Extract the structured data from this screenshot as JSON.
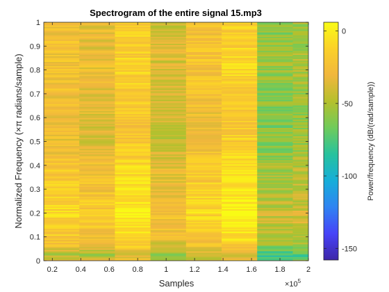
{
  "chart_data": {
    "type": "heatmap",
    "title": "Spectrogram of the entire signal 15.mp3",
    "xlabel": "Samples",
    "ylabel": "Normalized Frequency (×π radians/sample)",
    "x_exponent_label": "×10",
    "x_exponent_power": "5",
    "xlim": [
      0.14,
      2.0
    ],
    "ylim": [
      0,
      1
    ],
    "x_ticks": [
      0.2,
      0.4,
      0.6,
      0.8,
      1.0,
      1.2,
      1.4,
      1.6,
      1.8,
      2.0
    ],
    "x_tick_labels": [
      "0.2",
      "0.4",
      "0.6",
      "0.8",
      "1",
      "1.2",
      "1.4",
      "1.6",
      "1.8",
      "2"
    ],
    "y_ticks": [
      0,
      0.1,
      0.2,
      0.3,
      0.4,
      0.5,
      0.6,
      0.7,
      0.8,
      0.9,
      1
    ],
    "y_tick_labels": [
      "0",
      "0.1",
      "0.2",
      "0.3",
      "0.4",
      "0.5",
      "0.6",
      "0.7",
      "0.8",
      "0.9",
      "1"
    ],
    "segment_x_edges": [
      0.14,
      0.39,
      0.64,
      0.89,
      1.14,
      1.39,
      1.64,
      1.89,
      2.0
    ],
    "segment_levels_db": [
      -22,
      -28,
      -12,
      -35,
      -20,
      -10,
      -55,
      -50
    ],
    "frequency_profile": [
      {
        "f": 0.0,
        "db": -28
      },
      {
        "f": 0.02,
        "db": -45
      },
      {
        "f": 0.06,
        "db": -22
      },
      {
        "f": 0.1,
        "db": -10
      },
      {
        "f": 0.18,
        "db": -2
      },
      {
        "f": 0.25,
        "db": -6
      },
      {
        "f": 0.32,
        "db": -10
      },
      {
        "f": 0.4,
        "db": -14
      },
      {
        "f": 0.5,
        "db": -22
      },
      {
        "f": 0.6,
        "db": -24
      },
      {
        "f": 0.7,
        "db": -20
      },
      {
        "f": 0.8,
        "db": -16
      },
      {
        "f": 0.9,
        "db": -18
      },
      {
        "f": 1.0,
        "db": -20
      }
    ],
    "colorbar": {
      "label": "Power/frequency (dB/(rad/sample))",
      "range": [
        -158,
        6
      ],
      "ticks": [
        0,
        -50,
        -100,
        -150
      ],
      "tick_labels": [
        "0",
        "-50",
        "-100",
        "-150"
      ],
      "colormap": [
        "#3e26a8",
        "#4743f8",
        "#2f84f2",
        "#16aed9",
        "#27c29e",
        "#6fcb5b",
        "#b5c02d",
        "#f1b73d",
        "#fbd129",
        "#f9fb15"
      ]
    }
  }
}
